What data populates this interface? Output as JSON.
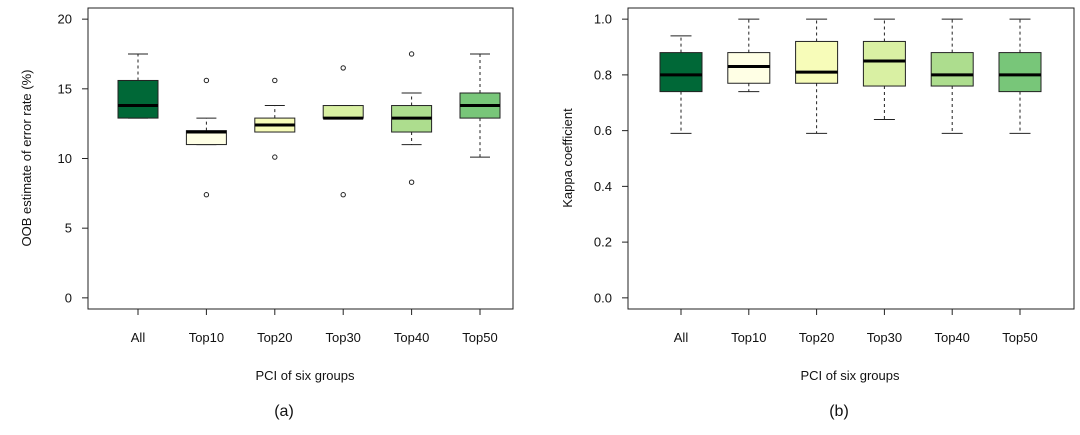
{
  "chart_data": [
    {
      "type": "box",
      "panel_label": "(a)",
      "xlabel": "PCI of six groups",
      "ylabel": "OOB estimate of error rate (%)",
      "ylim": [
        -0.8,
        20.8
      ],
      "yticks": [
        0,
        5,
        10,
        15,
        20
      ],
      "ytick_labels": [
        "0",
        "5",
        "10",
        "15",
        "20"
      ],
      "categories": [
        "All",
        "Top10",
        "Top20",
        "Top30",
        "Top40",
        "Top50"
      ],
      "fill_colors": [
        "#006837",
        "#ffffe5",
        "#f7fcb9",
        "#d9f0a3",
        "#addd8e",
        "#78c679"
      ],
      "boxes": [
        {
          "whisker_low": 12.9,
          "q1": 12.9,
          "median": 13.8,
          "q3": 15.6,
          "whisker_high": 17.5,
          "outliers": []
        },
        {
          "whisker_low": 11.0,
          "q1": 11.0,
          "median": 11.9,
          "q3": 12.0,
          "whisker_high": 12.9,
          "outliers": [
            7.4,
            15.6
          ]
        },
        {
          "whisker_low": 11.9,
          "q1": 11.9,
          "median": 12.4,
          "q3": 12.9,
          "whisker_high": 13.8,
          "outliers": [
            10.1,
            15.6
          ]
        },
        {
          "whisker_low": 12.9,
          "q1": 12.9,
          "median": 12.9,
          "q3": 13.8,
          "whisker_high": 13.8,
          "outliers": [
            7.4,
            16.5
          ]
        },
        {
          "whisker_low": 11.0,
          "q1": 11.9,
          "median": 12.9,
          "q3": 13.8,
          "whisker_high": 14.7,
          "outliers": [
            8.3,
            17.5
          ]
        },
        {
          "whisker_low": 10.1,
          "q1": 12.9,
          "median": 13.8,
          "q3": 14.7,
          "whisker_high": 17.5,
          "outliers": []
        }
      ]
    },
    {
      "type": "box",
      "panel_label": "(b)",
      "xlabel": "PCI of six groups",
      "ylabel": "Kappa coefficient",
      "ylim": [
        -0.04,
        1.04
      ],
      "yticks": [
        0.0,
        0.2,
        0.4,
        0.6,
        0.8,
        1.0
      ],
      "ytick_labels": [
        "0.0",
        "0.2",
        "0.4",
        "0.6",
        "0.8",
        "1.0"
      ],
      "categories": [
        "All",
        "Top10",
        "Top20",
        "Top30",
        "Top40",
        "Top50"
      ],
      "fill_colors": [
        "#006837",
        "#ffffe5",
        "#f7fcb9",
        "#d9f0a3",
        "#addd8e",
        "#78c679"
      ],
      "boxes": [
        {
          "whisker_low": 0.59,
          "q1": 0.74,
          "median": 0.8,
          "q3": 0.88,
          "whisker_high": 0.94,
          "outliers": []
        },
        {
          "whisker_low": 0.74,
          "q1": 0.77,
          "median": 0.83,
          "q3": 0.88,
          "whisker_high": 1.0,
          "outliers": []
        },
        {
          "whisker_low": 0.59,
          "q1": 0.77,
          "median": 0.81,
          "q3": 0.92,
          "whisker_high": 1.0,
          "outliers": []
        },
        {
          "whisker_low": 0.64,
          "q1": 0.76,
          "median": 0.85,
          "q3": 0.92,
          "whisker_high": 1.0,
          "outliers": []
        },
        {
          "whisker_low": 0.59,
          "q1": 0.76,
          "median": 0.8,
          "q3": 0.88,
          "whisker_high": 1.0,
          "outliers": []
        },
        {
          "whisker_low": 0.59,
          "q1": 0.74,
          "median": 0.8,
          "q3": 0.88,
          "whisker_high": 1.0,
          "outliers": []
        }
      ]
    }
  ]
}
